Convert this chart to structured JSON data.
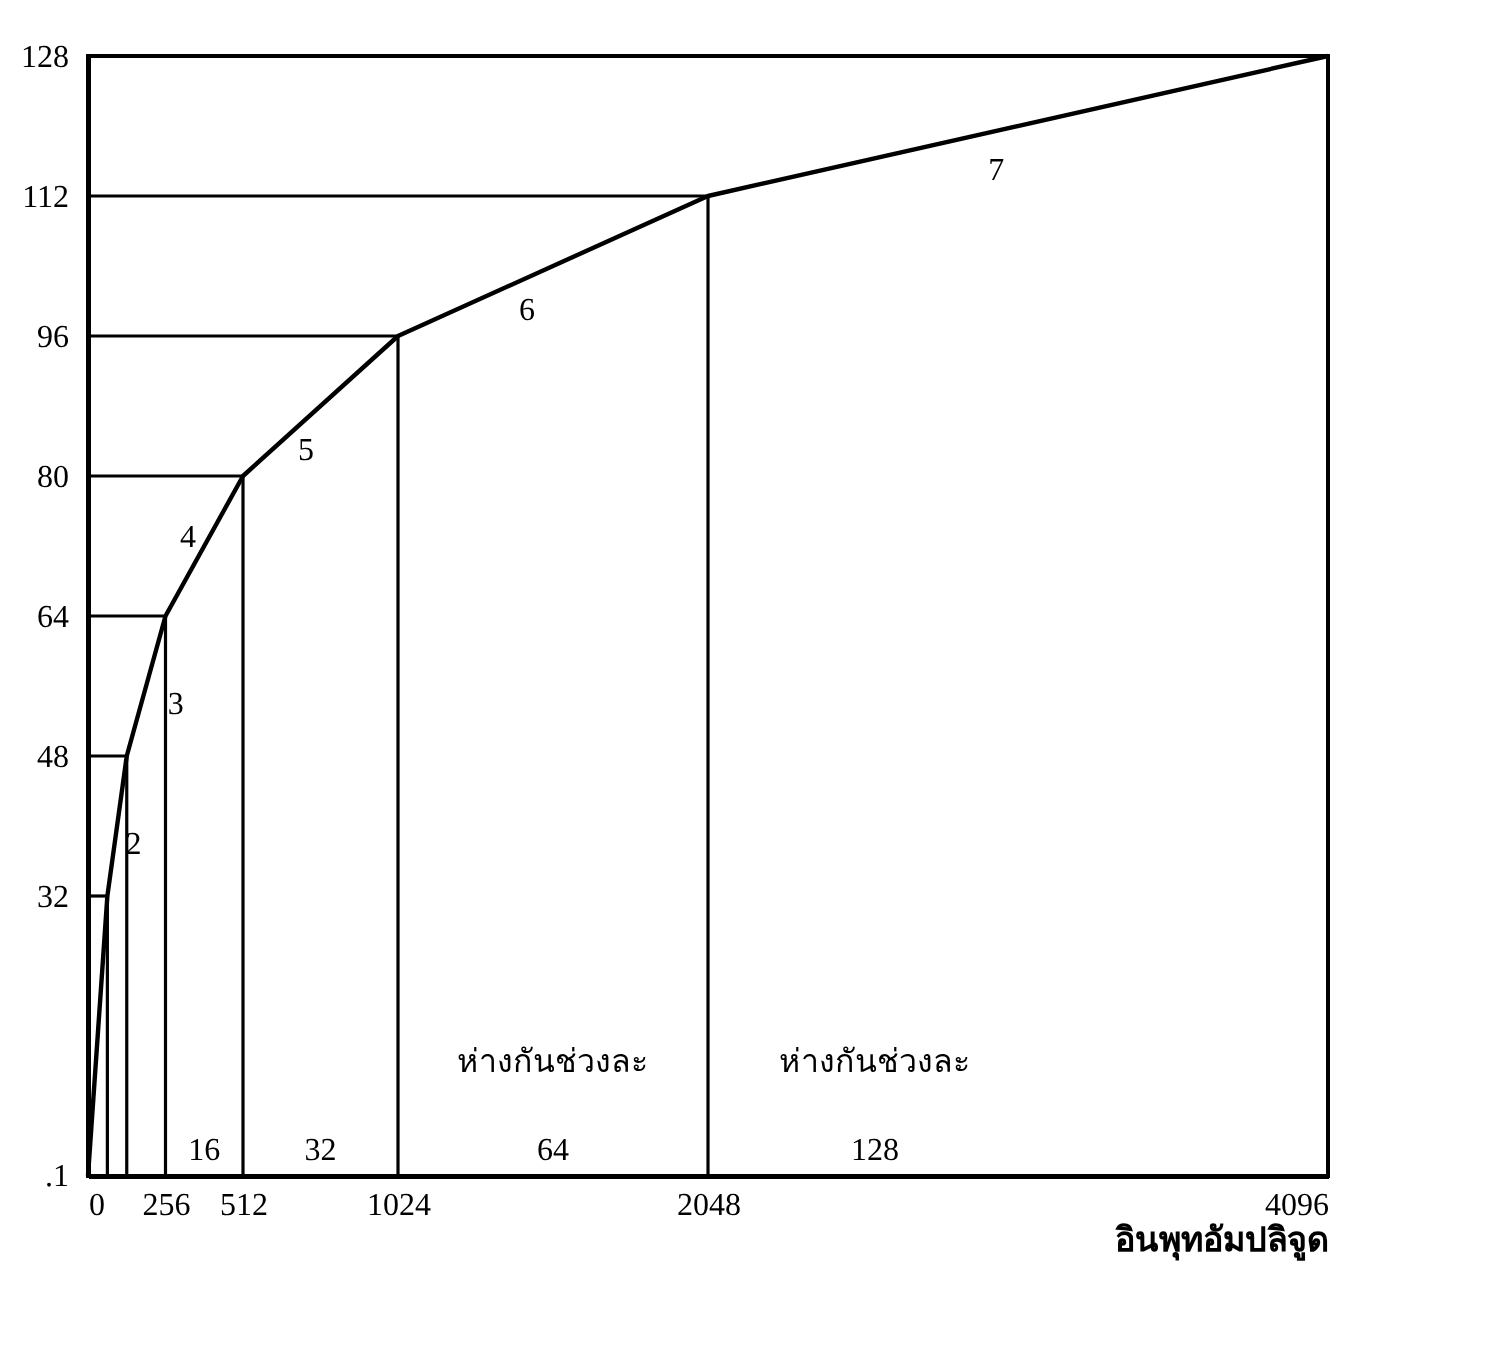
{
  "chart_data": {
    "type": "line",
    "xlabel": "อินพุทอัมปลิจูด",
    "xlim": [
      0,
      4096
    ],
    "ylim": [
      0,
      128
    ],
    "xticks": [
      0,
      256,
      512,
      1024,
      2048,
      4096
    ],
    "yticks": [
      {
        "value": 0.1,
        "label": ".1"
      },
      32,
      48,
      64,
      80,
      96,
      112,
      128
    ],
    "grid": false,
    "marker": "none",
    "line_style": "solid",
    "series": [
      {
        "color": "#000000",
        "x": [
          0,
          64,
          128,
          256,
          512,
          1024,
          2048,
          4096
        ],
        "values": [
          0,
          32,
          48,
          64,
          80,
          96,
          112,
          128
        ]
      },
      {
        "type": "line",
        "color": "#000000",
        "x": [
          0,
          64
        ],
        "values": [
          32,
          32
        ]
      },
      {
        "type": "line",
        "color": "#000000",
        "x": [
          0,
          128
        ],
        "values": [
          48,
          48
        ]
      },
      {
        "type": "line",
        "color": "#000000",
        "x": [
          0,
          256
        ],
        "values": [
          64,
          64
        ]
      },
      {
        "type": "line",
        "color": "#000000",
        "x": [
          0,
          512
        ],
        "values": [
          80,
          80
        ]
      },
      {
        "type": "line",
        "color": "#000000",
        "x": [
          0,
          1024
        ],
        "values": [
          96,
          96
        ]
      },
      {
        "type": "line",
        "color": "#000000",
        "x": [
          0,
          2048
        ],
        "values": [
          112,
          112
        ]
      },
      {
        "type": "line",
        "color": "#000000",
        "x": [
          64,
          64
        ],
        "values": [
          0,
          32
        ]
      },
      {
        "type": "line",
        "color": "#000000",
        "x": [
          128,
          128
        ],
        "values": [
          0,
          48
        ]
      },
      {
        "type": "line",
        "color": "#000000",
        "x": [
          256,
          256
        ],
        "values": [
          0,
          64
        ]
      },
      {
        "type": "line",
        "color": "#000000",
        "x": [
          512,
          512
        ],
        "values": [
          0,
          80
        ]
      },
      {
        "type": "line",
        "color": "#000000",
        "x": [
          1024,
          1024
        ],
        "values": [
          0,
          96
        ]
      },
      {
        "type": "line",
        "color": "#000000",
        "x": [
          2048,
          2048
        ],
        "values": [
          0,
          112
        ]
      }
    ],
    "annotations": [
      "2",
      "3",
      "4",
      "5",
      "6",
      "7",
      "16",
      "32",
      "ห่างกันช่วงละ",
      "64",
      "ห่างกันช่วงละ",
      "128"
    ]
  }
}
